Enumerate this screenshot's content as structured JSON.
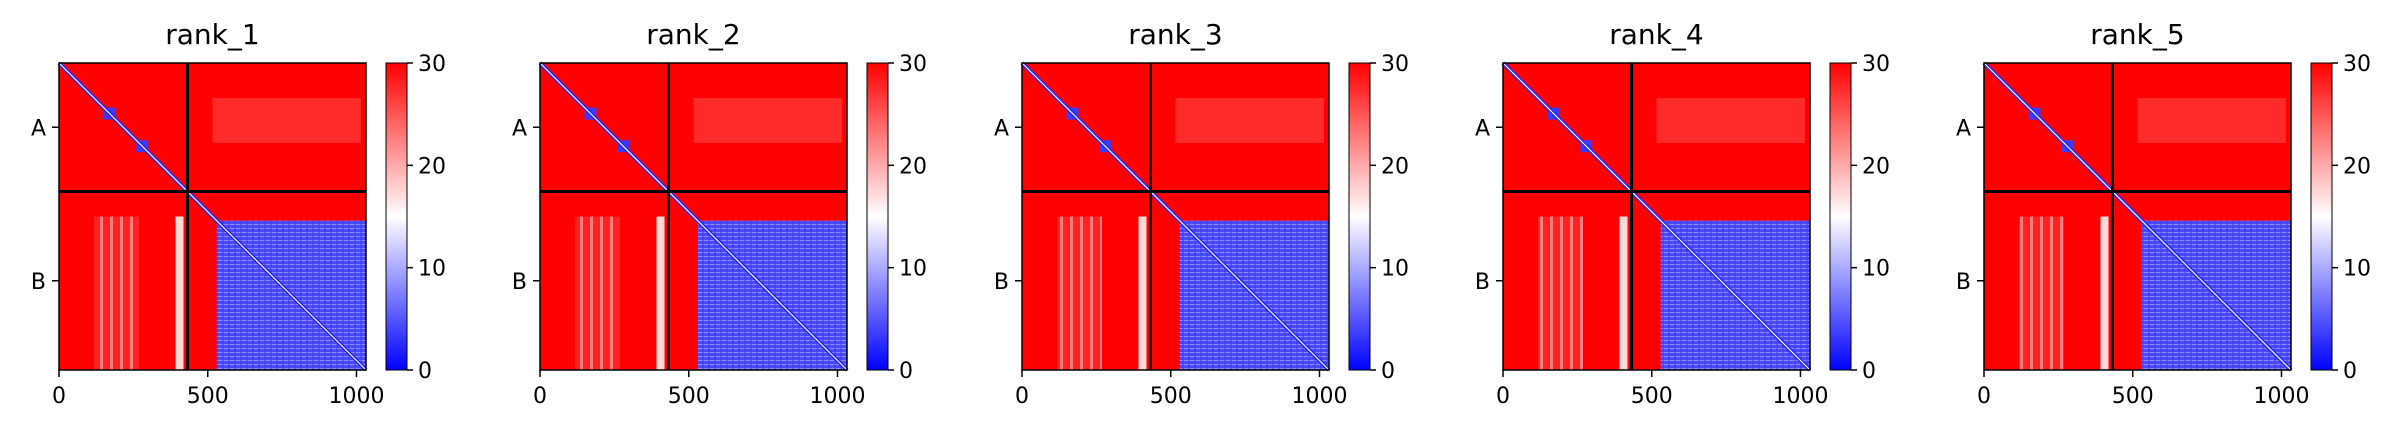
{
  "chart_data": [
    {
      "type": "heatmap",
      "title": "rank_1",
      "xlabel": "",
      "ylabel": "",
      "x_ticks": [
        "0",
        "500",
        "1000"
      ],
      "x_tick_values": [
        0,
        500,
        1000
      ],
      "xlim": [
        0,
        1032
      ],
      "y_ticks": [
        "A",
        "B"
      ],
      "chain_boundary": 432,
      "colorbar": {
        "range": [
          0,
          30
        ],
        "ticks": [
          "0",
          "10",
          "20",
          "30"
        ],
        "colormap": [
          "#0000ff",
          "#ffffff",
          "#ff0000"
        ]
      }
    },
    {
      "type": "heatmap",
      "title": "rank_2",
      "xlabel": "",
      "ylabel": "",
      "x_ticks": [
        "0",
        "500",
        "1000"
      ],
      "x_tick_values": [
        0,
        500,
        1000
      ],
      "xlim": [
        0,
        1032
      ],
      "y_ticks": [
        "A",
        "B"
      ],
      "chain_boundary": 432,
      "colorbar": {
        "range": [
          0,
          30
        ],
        "ticks": [
          "0",
          "10",
          "20",
          "30"
        ],
        "colormap": [
          "#0000ff",
          "#ffffff",
          "#ff0000"
        ]
      }
    },
    {
      "type": "heatmap",
      "title": "rank_3",
      "xlabel": "",
      "ylabel": "",
      "x_ticks": [
        "0",
        "500",
        "1000"
      ],
      "x_tick_values": [
        0,
        500,
        1000
      ],
      "xlim": [
        0,
        1032
      ],
      "y_ticks": [
        "A",
        "B"
      ],
      "chain_boundary": 432,
      "colorbar": {
        "range": [
          0,
          30
        ],
        "ticks": [
          "0",
          "10",
          "20",
          "30"
        ],
        "colormap": [
          "#0000ff",
          "#ffffff",
          "#ff0000"
        ]
      }
    },
    {
      "type": "heatmap",
      "title": "rank_4",
      "xlabel": "",
      "ylabel": "",
      "x_ticks": [
        "0",
        "500",
        "1000"
      ],
      "x_tick_values": [
        0,
        500,
        1000
      ],
      "xlim": [
        0,
        1032
      ],
      "y_ticks": [
        "A",
        "B"
      ],
      "chain_boundary": 432,
      "colorbar": {
        "range": [
          0,
          30
        ],
        "ticks": [
          "0",
          "10",
          "20",
          "30"
        ],
        "colormap": [
          "#0000ff",
          "#ffffff",
          "#ff0000"
        ]
      }
    },
    {
      "type": "heatmap",
      "title": "rank_5",
      "xlabel": "",
      "ylabel": "",
      "x_ticks": [
        "0",
        "500",
        "1000"
      ],
      "x_tick_values": [
        0,
        500,
        1000
      ],
      "xlim": [
        0,
        1032
      ],
      "y_ticks": [
        "A",
        "B"
      ],
      "chain_boundary": 432,
      "colorbar": {
        "range": [
          0,
          30
        ],
        "ticks": [
          "0",
          "10",
          "20",
          "30"
        ],
        "colormap": [
          "#0000ff",
          "#ffffff",
          "#ff0000"
        ]
      }
    }
  ]
}
